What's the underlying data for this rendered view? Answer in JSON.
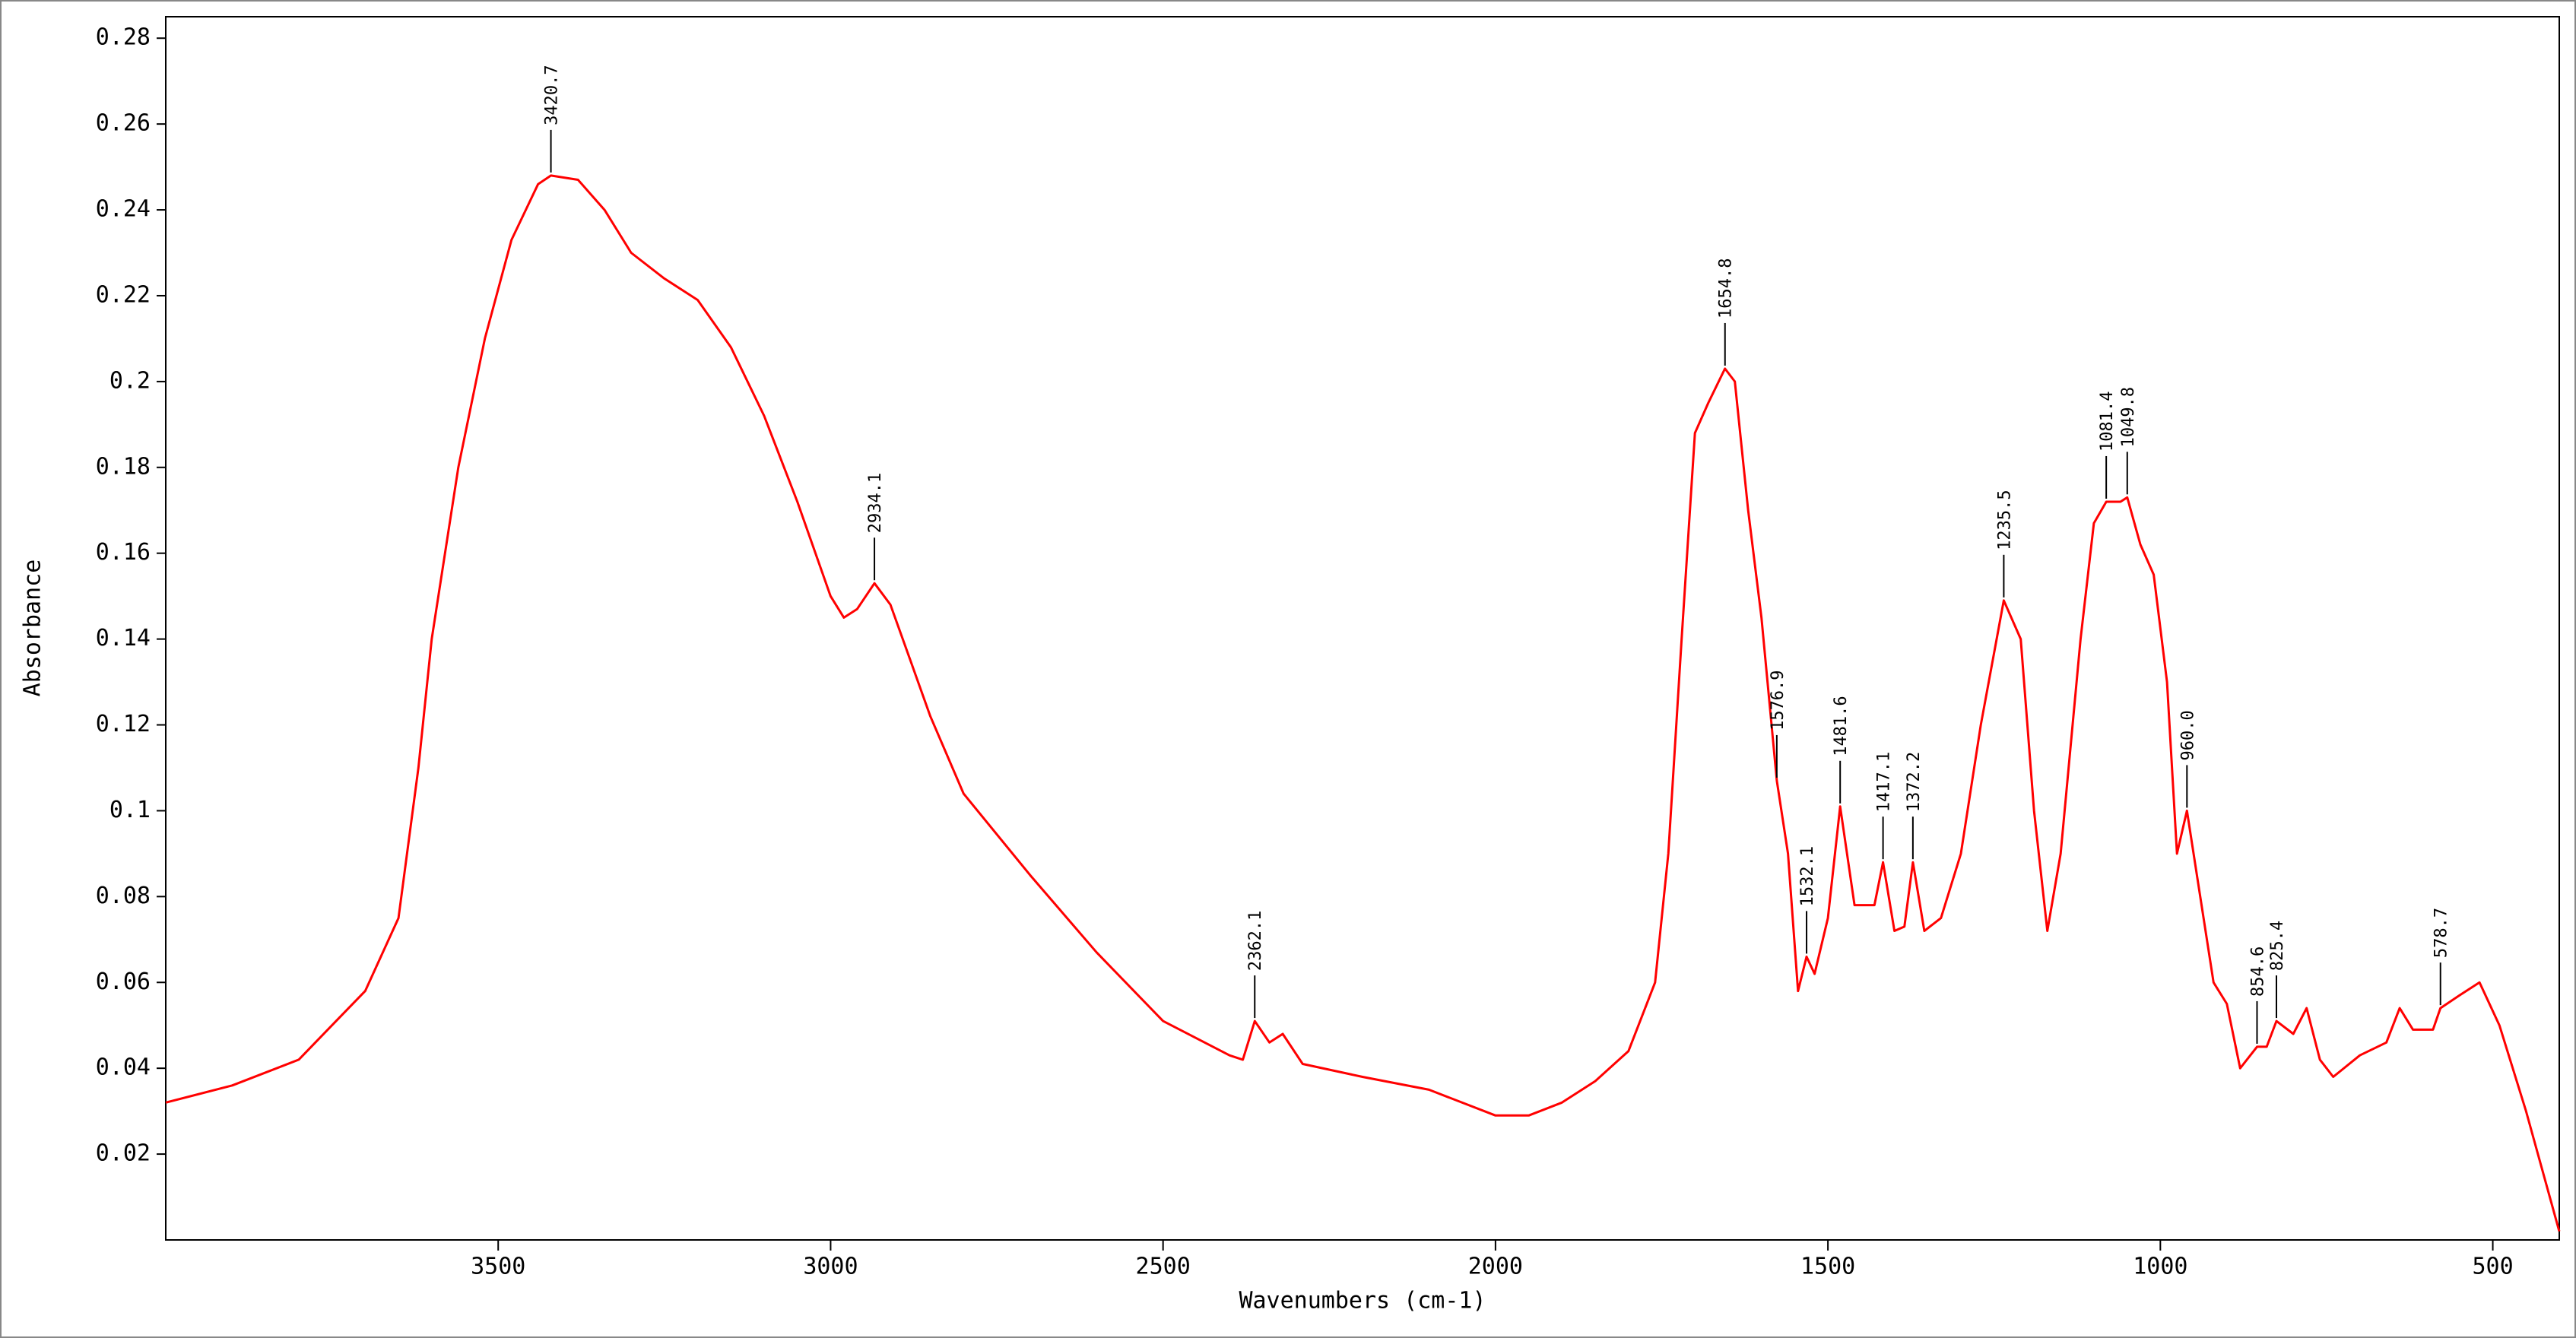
{
  "chart_data": {
    "type": "line",
    "xlabel": "Wavenumbers (cm-1)",
    "ylabel": "Absorbance",
    "color": "#ff0000",
    "xlim": [
      4000,
      400
    ],
    "ylim": [
      0,
      0.285
    ],
    "xticks": [
      3500,
      3000,
      2500,
      2000,
      1500,
      1000,
      500
    ],
    "yticks": [
      0.02,
      0.04,
      0.06,
      0.08,
      0.1,
      0.12,
      0.14,
      0.16,
      0.18,
      0.2,
      0.22,
      0.24,
      0.26,
      0.28
    ],
    "x": [
      4000,
      3900,
      3800,
      3750,
      3700,
      3650,
      3620,
      3600,
      3560,
      3520,
      3480,
      3440,
      3420.7,
      3380,
      3340,
      3300,
      3250,
      3200,
      3150,
      3100,
      3050,
      3000,
      2980,
      2960,
      2934.1,
      2910,
      2880,
      2850,
      2800,
      2700,
      2600,
      2500,
      2400,
      2380,
      2362.1,
      2340,
      2320,
      2290,
      2200,
      2100,
      2000,
      1950,
      1900,
      1850,
      1800,
      1760,
      1740,
      1720,
      1700,
      1680,
      1654.8,
      1640,
      1620,
      1600,
      1576.9,
      1560,
      1545,
      1532.1,
      1520,
      1500,
      1481.6,
      1460,
      1430,
      1417.1,
      1400,
      1385,
      1372.2,
      1355,
      1330,
      1300,
      1270,
      1235.5,
      1210,
      1190,
      1170,
      1150,
      1120,
      1100,
      1081.4,
      1060,
      1049.8,
      1030,
      1010,
      990,
      975,
      960,
      945,
      920,
      900,
      880,
      854.6,
      840,
      825.4,
      800,
      780,
      760,
      740,
      700,
      660,
      640,
      620,
      590,
      578.7,
      550,
      520,
      490,
      450,
      400
    ],
    "values": [
      0.032,
      0.036,
      0.042,
      0.05,
      0.058,
      0.075,
      0.11,
      0.14,
      0.18,
      0.21,
      0.233,
      0.246,
      0.248,
      0.247,
      0.24,
      0.23,
      0.224,
      0.219,
      0.208,
      0.192,
      0.172,
      0.15,
      0.145,
      0.147,
      0.153,
      0.148,
      0.135,
      0.122,
      0.104,
      0.085,
      0.067,
      0.051,
      0.043,
      0.042,
      0.051,
      0.046,
      0.048,
      0.041,
      0.038,
      0.035,
      0.029,
      0.029,
      0.032,
      0.037,
      0.044,
      0.06,
      0.09,
      0.14,
      0.188,
      0.195,
      0.203,
      0.2,
      0.17,
      0.145,
      0.107,
      0.09,
      0.058,
      0.066,
      0.062,
      0.075,
      0.101,
      0.078,
      0.078,
      0.088,
      0.072,
      0.073,
      0.088,
      0.072,
      0.075,
      0.09,
      0.12,
      0.149,
      0.14,
      0.1,
      0.072,
      0.09,
      0.14,
      0.167,
      0.172,
      0.172,
      0.173,
      0.162,
      0.155,
      0.13,
      0.09,
      0.1,
      0.085,
      0.06,
      0.055,
      0.04,
      0.045,
      0.045,
      0.051,
      0.048,
      0.054,
      0.042,
      0.038,
      0.043,
      0.046,
      0.054,
      0.049,
      0.049,
      0.054,
      0.057,
      0.06,
      0.05,
      0.03,
      0.002
    ],
    "peaks": [
      3420.7,
      2934.1,
      2362.1,
      1654.8,
      1576.9,
      1532.1,
      1481.6,
      1417.1,
      1372.2,
      1235.5,
      1081.4,
      1049.8,
      {
        "value": 960,
        "label": "960.0"
      },
      854.6,
      825.4,
      578.7
    ]
  }
}
